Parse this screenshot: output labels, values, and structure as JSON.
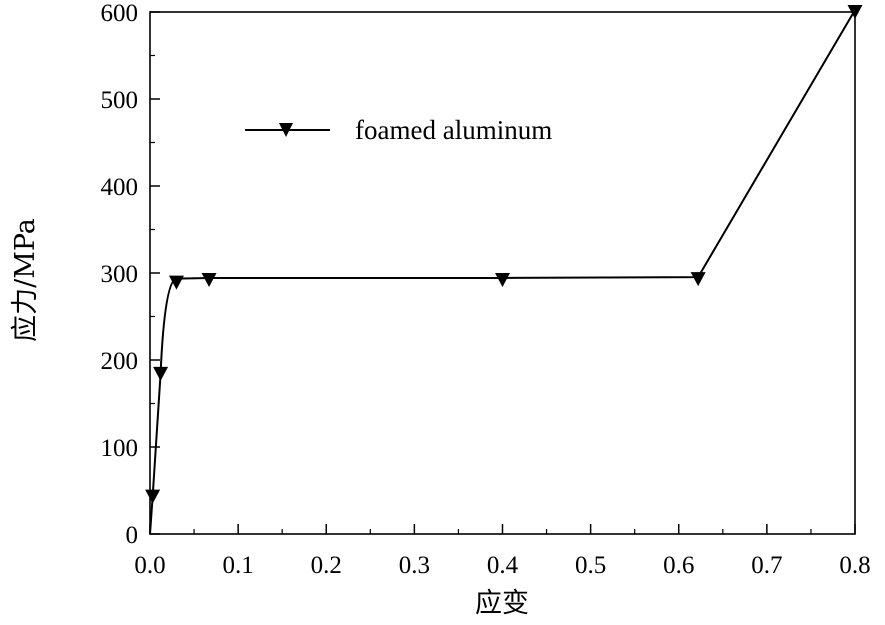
{
  "chart_data": {
    "type": "line",
    "title": "",
    "xlabel": "应变",
    "ylabel": "应力/MPa",
    "xlim": [
      0.0,
      0.8
    ],
    "ylim": [
      0,
      600
    ],
    "xticks": [
      0.0,
      0.1,
      0.2,
      0.3,
      0.4,
      0.5,
      0.6,
      0.7,
      0.8
    ],
    "xtick_labels": [
      "0.0",
      "0.1",
      "0.2",
      "0.3",
      "0.4",
      "0.5",
      "0.6",
      "0.7",
      "0.8"
    ],
    "yticks": [
      0,
      100,
      200,
      300,
      400,
      500,
      600
    ],
    "ytick_labels": [
      "0",
      "100",
      "200",
      "300",
      "400",
      "500",
      "600"
    ],
    "grid": false,
    "legend_position": "top-left",
    "series": [
      {
        "name": "foamed aluminum",
        "color": "#000000",
        "marker": "triangle-down",
        "x": [
          0.0,
          0.003,
          0.012,
          0.03,
          0.067,
          0.4,
          0.622,
          0.8
        ],
        "y": [
          0,
          43,
          184,
          289,
          292,
          292,
          293,
          600
        ],
        "marked": [
          false,
          true,
          true,
          true,
          true,
          true,
          true,
          true
        ]
      }
    ]
  }
}
